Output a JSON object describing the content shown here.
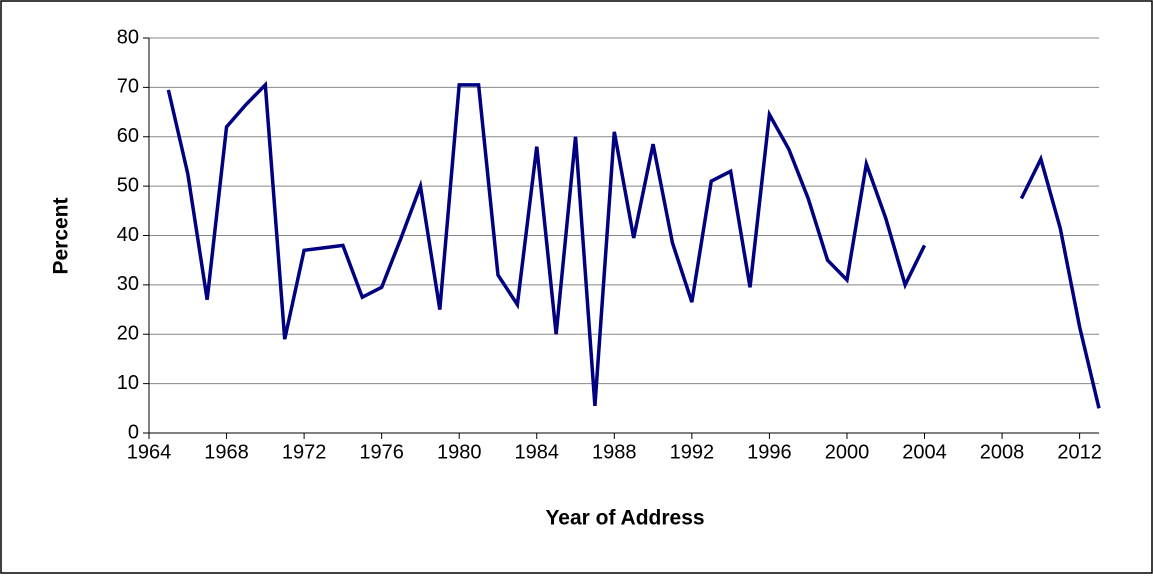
{
  "chart_data": {
    "type": "line",
    "x_label": "Year of Address",
    "y_label": "Percent",
    "x": [
      1965,
      1966,
      1967,
      1968,
      1969,
      1970,
      1971,
      1972,
      1973,
      1974,
      1975,
      1976,
      1977,
      1978,
      1979,
      1980,
      1981,
      1982,
      1983,
      1984,
      1985,
      1986,
      1987,
      1988,
      1989,
      1990,
      1991,
      1992,
      1993,
      1994,
      1995,
      1996,
      1997,
      1998,
      1999,
      2000,
      2001,
      2002,
      2003,
      2004,
      2005,
      2006,
      2007,
      2008,
      2009,
      2010,
      2011,
      2012,
      2013
    ],
    "values": [
      69.5,
      52.5,
      27,
      62,
      66.5,
      70.5,
      19,
      37,
      37.5,
      38,
      27.5,
      29.5,
      39.5,
      50,
      25,
      70.5,
      70.5,
      32,
      26,
      58,
      20,
      60,
      5.5,
      61,
      39.5,
      58.5,
      38.5,
      26.5,
      51,
      53,
      29.5,
      64.5,
      57.5,
      47.5,
      35,
      31,
      54.5,
      43.5,
      30,
      38,
      null,
      null,
      null,
      null,
      47.5,
      55.5,
      41.5,
      21.5,
      5
    ],
    "color": "#000080",
    "xlim": [
      1964,
      2013
    ],
    "xticks": [
      1964,
      1968,
      1972,
      1976,
      1980,
      1984,
      1988,
      1992,
      1996,
      2000,
      2004,
      2008,
      2012
    ],
    "ylim": [
      0,
      80
    ],
    "yticks": [
      0,
      10,
      20,
      30,
      40,
      50,
      60,
      70,
      80
    ],
    "grid": true
  }
}
